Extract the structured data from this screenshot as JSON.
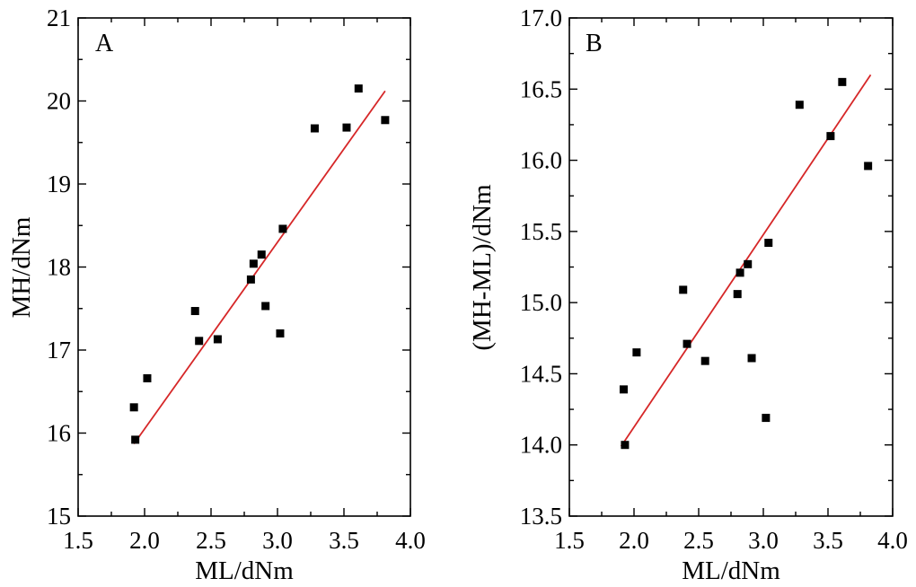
{
  "chart_data": [
    {
      "type": "scatter",
      "panel_label": "A",
      "xlabel": "ML/dNm",
      "ylabel": "MH/dNm",
      "xlim": [
        1.5,
        4.0
      ],
      "ylim": [
        15,
        21
      ],
      "xticks": [
        1.5,
        2.0,
        2.5,
        3.0,
        3.5,
        4.0
      ],
      "yticks": [
        15,
        16,
        17,
        18,
        19,
        20,
        21
      ],
      "xtick_labels": [
        "1.5",
        "2.0",
        "2.5",
        "3.0",
        "3.5",
        "4.0"
      ],
      "ytick_labels": [
        "15",
        "16",
        "17",
        "18",
        "19",
        "20",
        "21"
      ],
      "points": [
        {
          "x": 1.92,
          "y": 16.31
        },
        {
          "x": 1.93,
          "y": 15.92
        },
        {
          "x": 2.02,
          "y": 16.66
        },
        {
          "x": 2.38,
          "y": 17.47
        },
        {
          "x": 2.41,
          "y": 17.11
        },
        {
          "x": 2.55,
          "y": 17.13
        },
        {
          "x": 2.8,
          "y": 17.85
        },
        {
          "x": 2.82,
          "y": 18.04
        },
        {
          "x": 2.88,
          "y": 18.15
        },
        {
          "x": 2.91,
          "y": 17.53
        },
        {
          "x": 3.02,
          "y": 17.2
        },
        {
          "x": 3.04,
          "y": 18.46
        },
        {
          "x": 3.28,
          "y": 19.67
        },
        {
          "x": 3.52,
          "y": 19.68
        },
        {
          "x": 3.61,
          "y": 20.15
        },
        {
          "x": 3.81,
          "y": 19.77
        }
      ],
      "fit_line": {
        "x": [
          1.92,
          3.81
        ],
        "y": [
          15.87,
          20.12
        ],
        "color": "#d62728"
      }
    },
    {
      "type": "scatter",
      "panel_label": "B",
      "xlabel": "ML/dNm",
      "ylabel": "(MH-ML)/dNm",
      "xlim": [
        1.5,
        4.0
      ],
      "ylim": [
        13.5,
        17.0
      ],
      "xticks": [
        1.5,
        2.0,
        2.5,
        3.0,
        3.5,
        4.0
      ],
      "yticks": [
        13.5,
        14.0,
        14.5,
        15.0,
        15.5,
        16.0,
        16.5,
        17.0
      ],
      "xtick_labels": [
        "1.5",
        "2.0",
        "2.5",
        "3.0",
        "3.5",
        "4.0"
      ],
      "ytick_labels": [
        "13.5",
        "14.0",
        "14.5",
        "15.0",
        "15.5",
        "16.0",
        "16.5",
        "17.0"
      ],
      "points": [
        {
          "x": 1.92,
          "y": 14.39
        },
        {
          "x": 1.93,
          "y": 14.0
        },
        {
          "x": 2.02,
          "y": 14.65
        },
        {
          "x": 2.38,
          "y": 15.09
        },
        {
          "x": 2.41,
          "y": 14.71
        },
        {
          "x": 2.55,
          "y": 14.59
        },
        {
          "x": 2.8,
          "y": 15.06
        },
        {
          "x": 2.82,
          "y": 15.21
        },
        {
          "x": 2.88,
          "y": 15.27
        },
        {
          "x": 2.91,
          "y": 14.61
        },
        {
          "x": 3.02,
          "y": 14.19
        },
        {
          "x": 3.04,
          "y": 15.42
        },
        {
          "x": 3.28,
          "y": 16.39
        },
        {
          "x": 3.52,
          "y": 16.17
        },
        {
          "x": 3.61,
          "y": 16.55
        },
        {
          "x": 3.81,
          "y": 15.96
        }
      ],
      "fit_line": {
        "x": [
          1.9,
          3.83
        ],
        "y": [
          13.99,
          16.6
        ],
        "color": "#d62728"
      }
    }
  ]
}
